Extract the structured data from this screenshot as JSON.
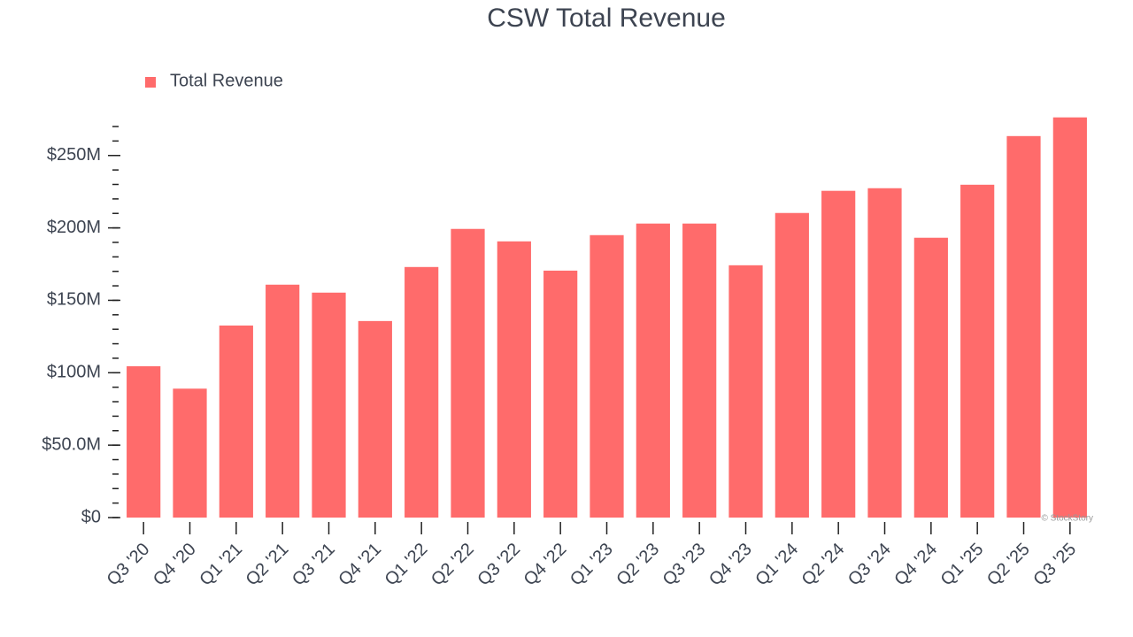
{
  "chart_data": {
    "type": "bar",
    "title": "CSW Total Revenue",
    "categories": [
      "Q3 '20",
      "Q4 '20",
      "Q1 '21",
      "Q2 '21",
      "Q3 '21",
      "Q4 '21",
      "Q1 '22",
      "Q2 '22",
      "Q3 '22",
      "Q4 '22",
      "Q1 '23",
      "Q2 '23",
      "Q3 '23",
      "Q4 '23",
      "Q1 '24",
      "Q2 '24",
      "Q3 '24",
      "Q4 '24",
      "Q1 '25",
      "Q2 '25",
      "Q3 '25"
    ],
    "series": [
      {
        "name": "Total Revenue",
        "color": "#ff6b6b",
        "values": [
          104.5,
          89,
          132.6,
          160.8,
          155.3,
          135.7,
          173,
          199.3,
          190.7,
          170.5,
          195,
          203,
          203,
          174.2,
          210.3,
          225.6,
          227.4,
          193.2,
          229.8,
          263.4,
          276.3
        ]
      }
    ],
    "ylim": [
      0,
      270
    ],
    "yticks": [
      {
        "value": 0,
        "label": "$0"
      },
      {
        "value": 50,
        "label": "$50.0M"
      },
      {
        "value": 100,
        "label": "$100M"
      },
      {
        "value": 150,
        "label": "$150M"
      },
      {
        "value": 200,
        "label": "$200M"
      },
      {
        "value": 250,
        "label": "$250M"
      }
    ],
    "minor_yticks": [
      0,
      10,
      20,
      30,
      40,
      50,
      60,
      70,
      80,
      90,
      100,
      110,
      120,
      130,
      140,
      150,
      160,
      170,
      180,
      190,
      200,
      210,
      220,
      230,
      240,
      250,
      260,
      270
    ],
    "grid": false,
    "legend": "top-left",
    "watermark": "© StockStory"
  }
}
